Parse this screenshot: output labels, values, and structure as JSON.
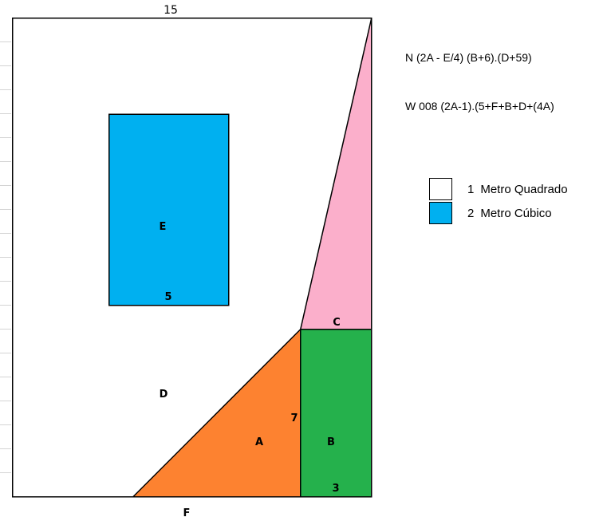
{
  "colors": {
    "pink": "#FBAFCB",
    "green": "#25B14C",
    "orange": "#FD8230",
    "blue": "#00B0F0",
    "white": "#FFFFFF",
    "outline": "#000000"
  },
  "labels": {
    "top_dimension": "15",
    "E": "E",
    "five": "5",
    "C": "C",
    "D": "D",
    "seven": "7",
    "A": "A",
    "B": "B",
    "three": "3",
    "F": "F"
  },
  "formulas": {
    "n": "N (2A - E/4) (B+6).(D+59)",
    "w": "W 008 (2A-1).(5+F+B+D+(4A)"
  },
  "legend": [
    {
      "number": "1",
      "text": "Metro Quadrado",
      "color": "#FFFFFF"
    },
    {
      "number": "2",
      "text": "Metro Cúbico",
      "color": "#00B0F0"
    }
  ]
}
